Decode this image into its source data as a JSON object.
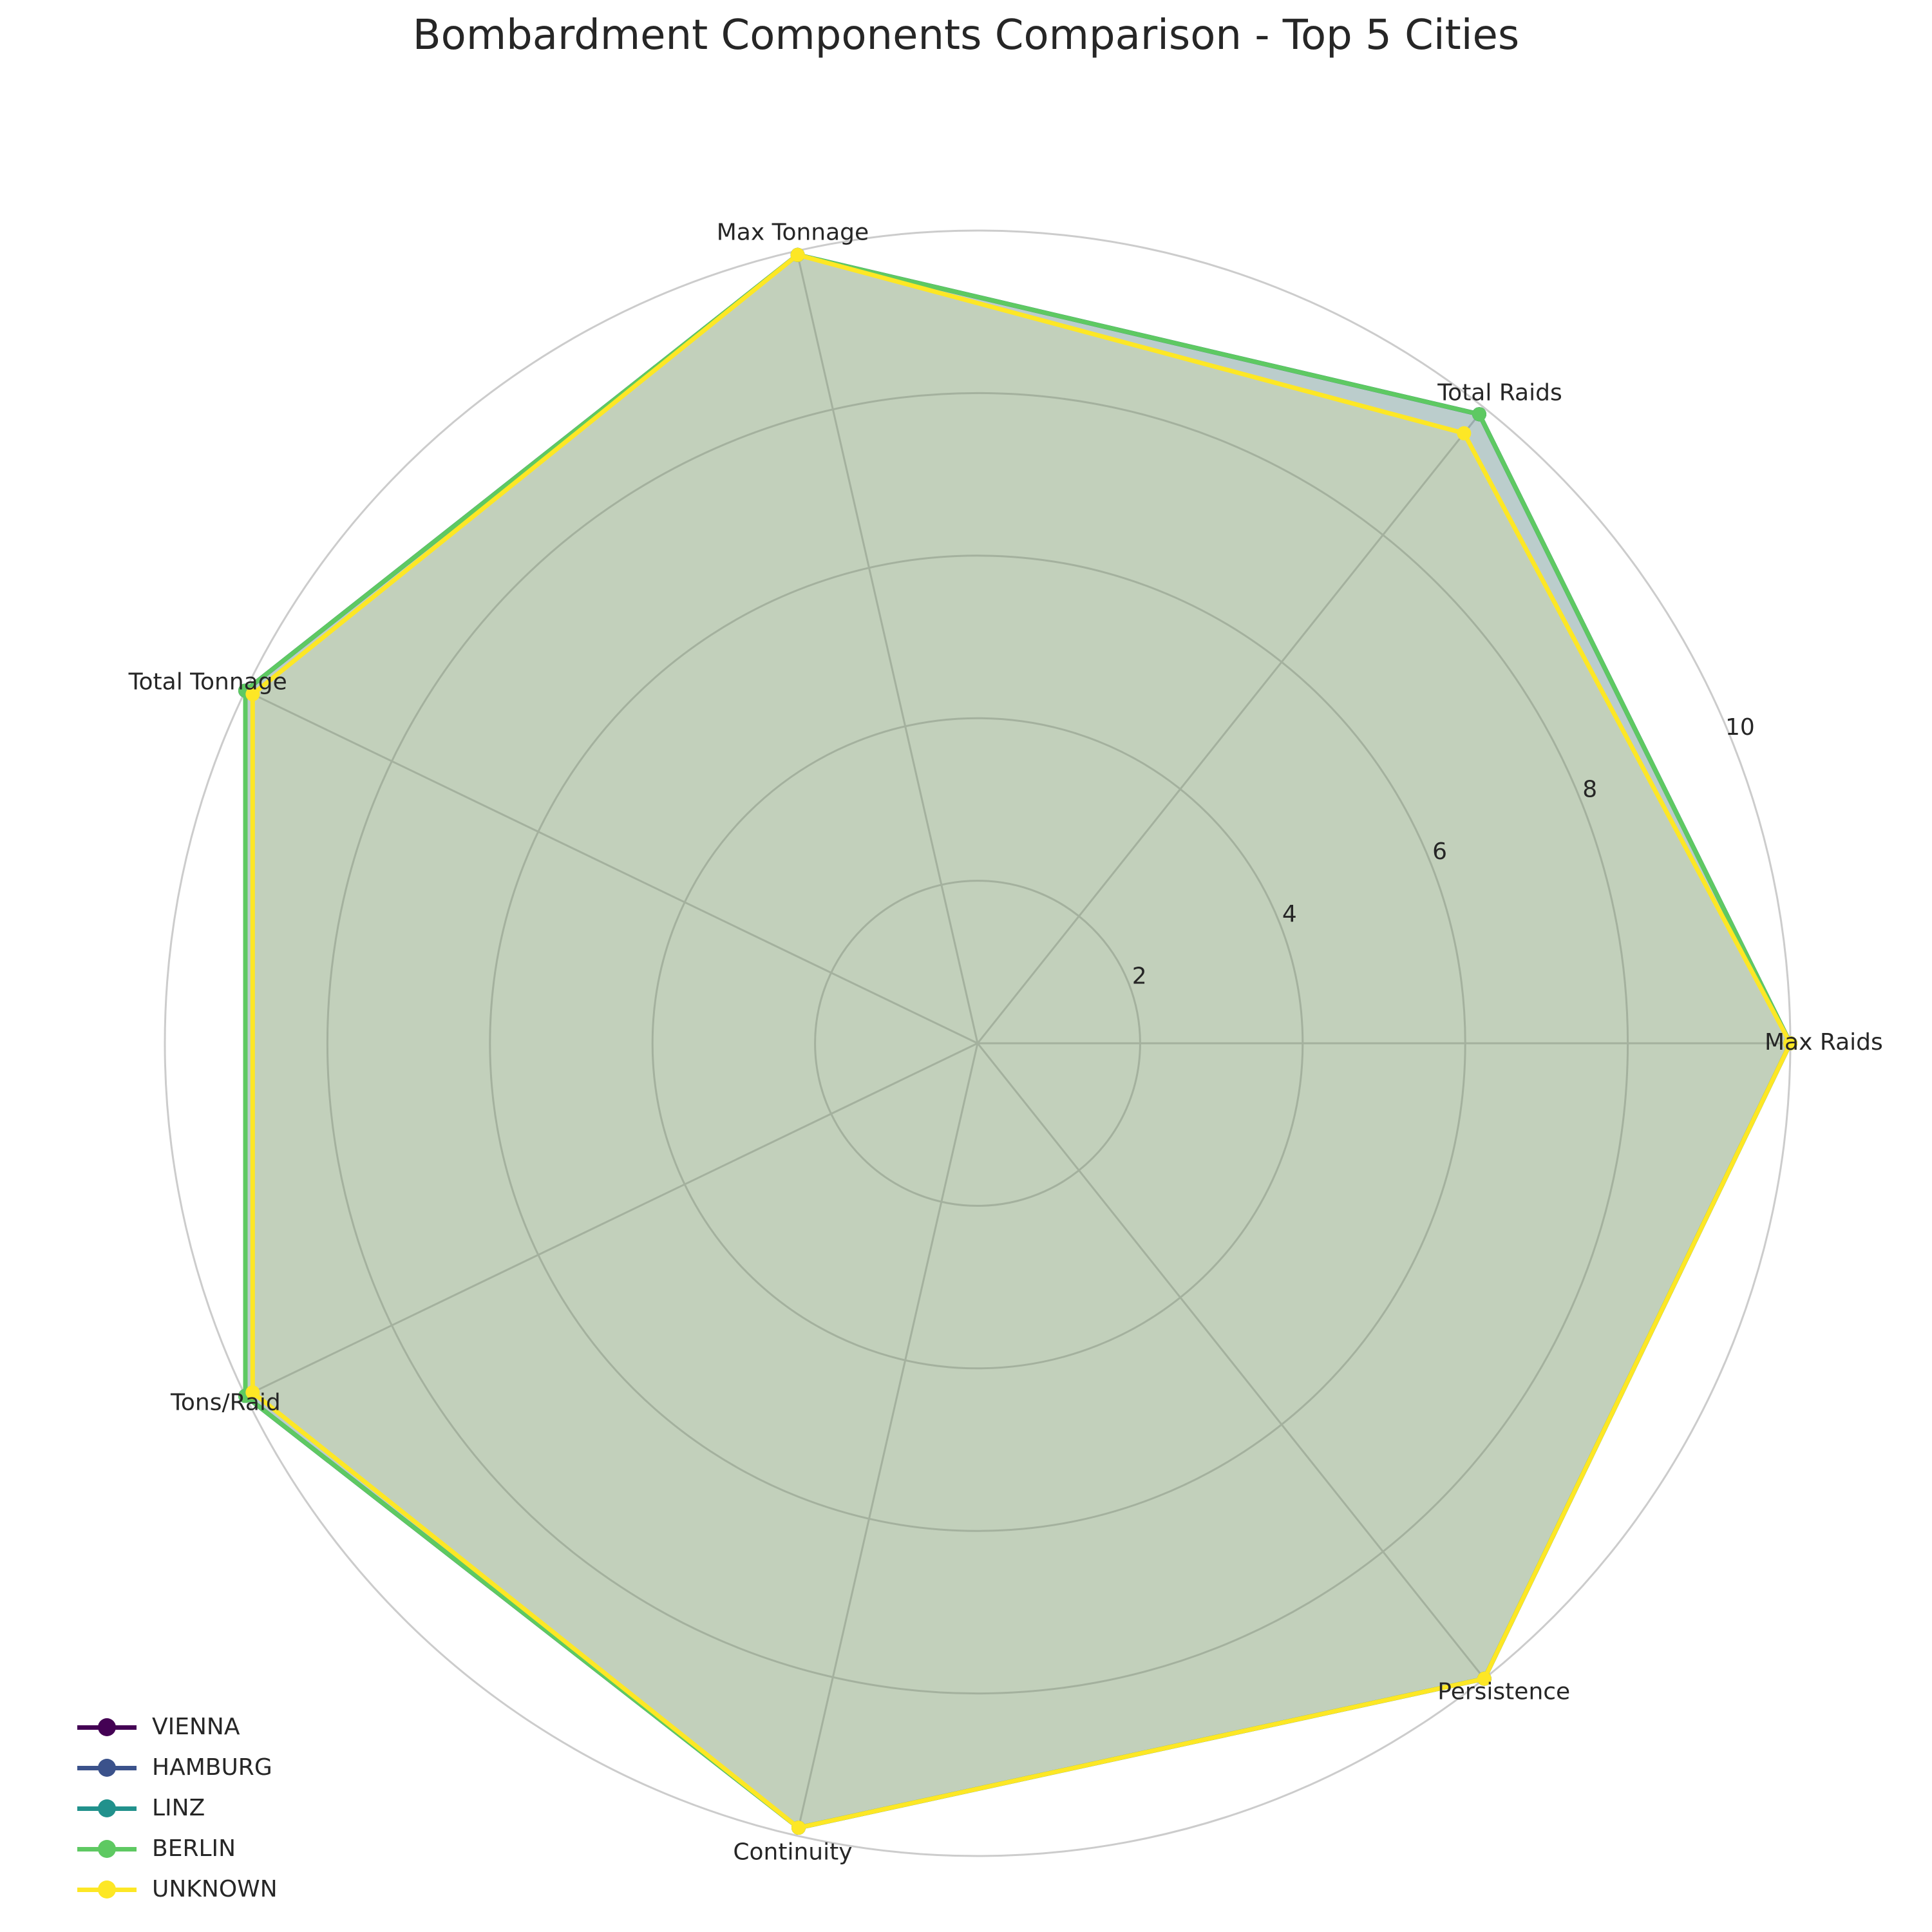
{
  "chart_data": {
    "type": "radar",
    "title": "Bombardment Components Comparison - Top 5 Cities",
    "axes": [
      "Max Raids",
      "Total Raids",
      "Max Tonnage",
      "Total Tonnage",
      "Tons/Raid",
      "Continuity",
      "Persistence"
    ],
    "rlim": [
      0,
      10
    ],
    "rticks": [
      "2",
      "4",
      "6",
      "8",
      "10"
    ],
    "rtick_values": [
      2,
      4,
      6,
      8,
      10
    ],
    "grid": true,
    "legend_position": "lower-left",
    "series": [
      {
        "name": "VIENNA",
        "color": "#440154",
        "values": [
          10,
          9.9,
          9.95,
          10,
          10,
          9.9,
          10
        ]
      },
      {
        "name": "HAMBURG",
        "color": "#3b528b",
        "values": [
          10,
          9.9,
          9.95,
          10,
          10,
          9.9,
          10
        ]
      },
      {
        "name": "LINZ",
        "color": "#21918c",
        "values": [
          10,
          9.9,
          9.95,
          10,
          10,
          9.9,
          10
        ]
      },
      {
        "name": "BERLIN",
        "color": "#5ec962",
        "values": [
          10,
          9.9,
          9.95,
          10,
          10,
          9.9,
          10
        ]
      },
      {
        "name": "UNKNOWN",
        "color": "#fde725",
        "values": [
          10,
          9.6,
          9.95,
          9.9,
          9.9,
          9.9,
          10
        ]
      }
    ]
  }
}
